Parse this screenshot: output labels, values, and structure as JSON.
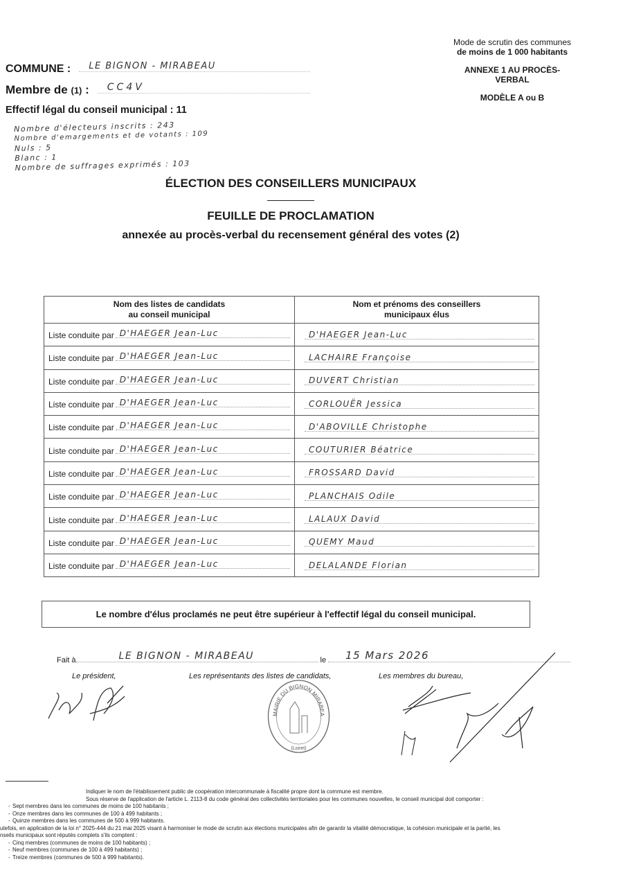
{
  "header_right": {
    "line1": "Mode de scrutin des communes",
    "line2": "de moins de 1 000 habitants",
    "annexe": "ANNEXE 1 AU PROCÈS-VERBAL",
    "modele": "MODÈLE A ou B"
  },
  "commune": {
    "label": "COMMUNE",
    "value": "LE BIGNON - MIRABEAU"
  },
  "membre_de": {
    "label": "Membre de",
    "ref": "(1)",
    "value": "CC4V"
  },
  "effectif": {
    "label": "Effectif légal du conseil municipal : 11"
  },
  "handwritten_notes": [
    "Nombre d'électeurs inscrits : 243",
    "Nombre d'emargements et de votants : 109",
    "Nuls : 5",
    "Blanc : 1",
    "Nombre de suffrages exprimés : 103"
  ],
  "titles": {
    "main": "ÉLECTION DES CONSEILLERS MUNICIPAUX",
    "sub": "FEUILLE DE PROCLAMATION",
    "annex": "annexée au procès-verbal du recensement général des votes (2)"
  },
  "table": {
    "col1_header": [
      "Nom des listes de candidats",
      "au conseil municipal"
    ],
    "col2_header": [
      "Nom et prénoms des conseillers",
      "municipaux élus"
    ],
    "row_prefix": "Liste conduite par",
    "rows": [
      {
        "list": "D'HAEGER Jean-Luc",
        "elu": "D'HAEGER Jean-Luc"
      },
      {
        "list": "D'HAEGER Jean-Luc",
        "elu": "LACHAIRE Françoise"
      },
      {
        "list": "D'HAEGER Jean-Luc",
        "elu": "DUVERT Christian"
      },
      {
        "list": "D'HAEGER Jean-Luc",
        "elu": "CORLOUËR Jessica"
      },
      {
        "list": "D'HAEGER Jean-Luc",
        "elu": "D'ABOVILLE Christophe"
      },
      {
        "list": "D'HAEGER Jean-Luc",
        "elu": "COUTURIER Béatrice"
      },
      {
        "list": "D'HAEGER Jean-Luc",
        "elu": "FROSSARD David"
      },
      {
        "list": "D'HAEGER Jean-Luc",
        "elu": "PLANCHAIS Odile"
      },
      {
        "list": "D'HAEGER Jean-Luc",
        "elu": "LALAUX David"
      },
      {
        "list": "D'HAEGER Jean-Luc",
        "elu": "QUEMY Maud"
      },
      {
        "list": "D'HAEGER Jean-Luc",
        "elu": "DELALANDE Florian"
      }
    ]
  },
  "notice": "Le nombre d'élus proclamés ne peut être supérieur à l'effectif légal du conseil municipal.",
  "fait": {
    "label": "Fait à",
    "place": "LE BIGNON - MIRABEAU",
    "le_label": "le",
    "date": "15 Mars 2026"
  },
  "signatures": {
    "president": "Le président,",
    "representants": "Les représentants des listes de candidats,",
    "bureau": "Les membres du bureau,"
  },
  "seal": {
    "text": "MAIRIE DU BIGNON MIRABEAU",
    "sub": "(Loiret)"
  },
  "footnotes": {
    "note1": "Indiquer le nom de l'établissement public de coopération intercommunale à fiscalité propre dont la commune est membre.",
    "note2": "Sous réserve de l'application de l'article L. 2113-8 du code général des collectivités territoriales pour les communes nouvelles, le conseil municipal doit comporter :",
    "list1": [
      "Sept membres dans les communes de moins de 100 habitants ;",
      "Onze membres dans les communes de 100 à 499 habitants ;",
      "Quinze membres dans les communes de 500 à 999 habitants."
    ],
    "para": "utefois, en application de la loi n° 2025-444 du 21 mai 2025 visant à harmoniser le mode de scrutin aux élections municipales afin de garantir la vitalité démocratique, la cohésion municipale et la parité, les",
    "para2": "nseils municipaux sont réputés complets s'ils comptent :",
    "list2": [
      "Cinq membres (communes de moins de 100 habitants) ;",
      "Neuf membres (communes de 100 à 499 habitants) ;",
      "Treize membres (communes de 500 à 999 habitants)."
    ]
  }
}
